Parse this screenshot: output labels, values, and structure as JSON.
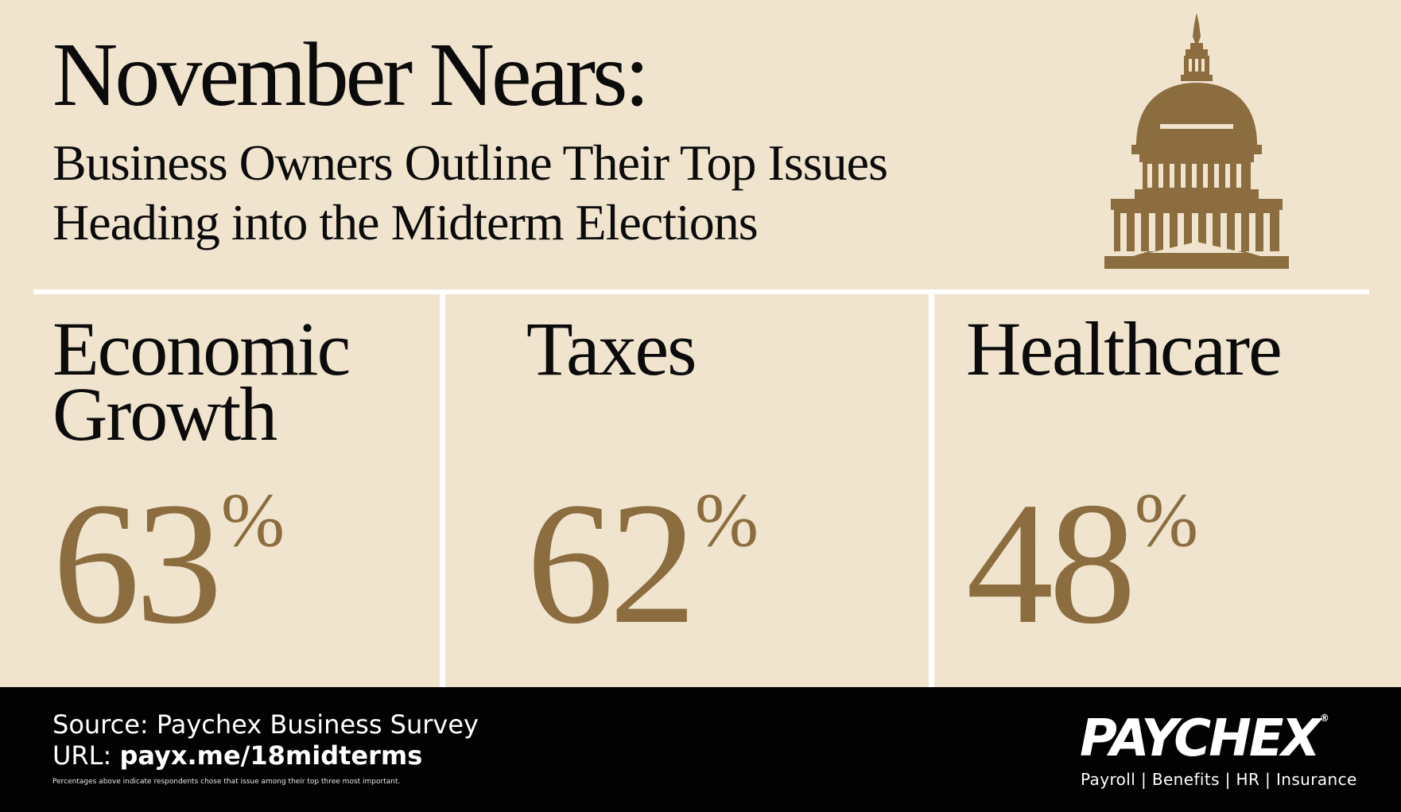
{
  "header": {
    "title": "November Nears:",
    "subtitle_line1": "Business Owners Outline Their Top Issues",
    "subtitle_line2": "Heading into the Midterm Elections"
  },
  "icon": "capitol-building-icon",
  "issues": [
    {
      "name_line1": "Economic",
      "name_line2": "Growth",
      "value": "63",
      "unit": "%"
    },
    {
      "name_line1": "Taxes",
      "name_line2": "",
      "value": "62",
      "unit": "%"
    },
    {
      "name_line1": "Healthcare",
      "name_line2": "",
      "value": "48",
      "unit": "%"
    }
  ],
  "footer": {
    "source": "Source: Paychex Business Survey",
    "url_label": "URL:",
    "url_value": "payx.me/18midterms",
    "footnote": "Percentages above indicate respondents chose that issue among their top three most important.",
    "brand": "PAYCHEX",
    "brand_mark": "®",
    "tagline": "Payroll | Benefits | HR | Insurance"
  },
  "colors": {
    "background": "#f1e4cf",
    "accent_gold": "#8b6d3f",
    "text": "#0b0b0b",
    "footer_bg": "#020202",
    "divider": "#ffffff"
  }
}
